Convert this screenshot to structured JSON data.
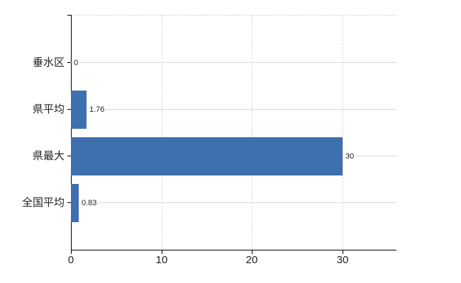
{
  "chart_data": {
    "type": "bar",
    "orientation": "horizontal",
    "title": "",
    "categories": [
      "垂水区",
      "県平均",
      "県最大",
      "全国平均"
    ],
    "values": [
      0,
      1.76,
      30,
      0.83
    ],
    "value_labels": [
      "0",
      "1.76",
      "30",
      "0.83"
    ],
    "x_ticks": [
      0,
      10,
      20,
      30
    ],
    "x_tick_labels": [
      "0",
      "10",
      "20",
      "30"
    ],
    "xlim": [
      0,
      36
    ],
    "grid": true,
    "legend_position": "none",
    "bar_color": "#3e6fae",
    "grid_color": "#d5d9d3",
    "axis_color": "#000000",
    "text_color": "#1f1f1f",
    "background_color": "#ffffff"
  }
}
